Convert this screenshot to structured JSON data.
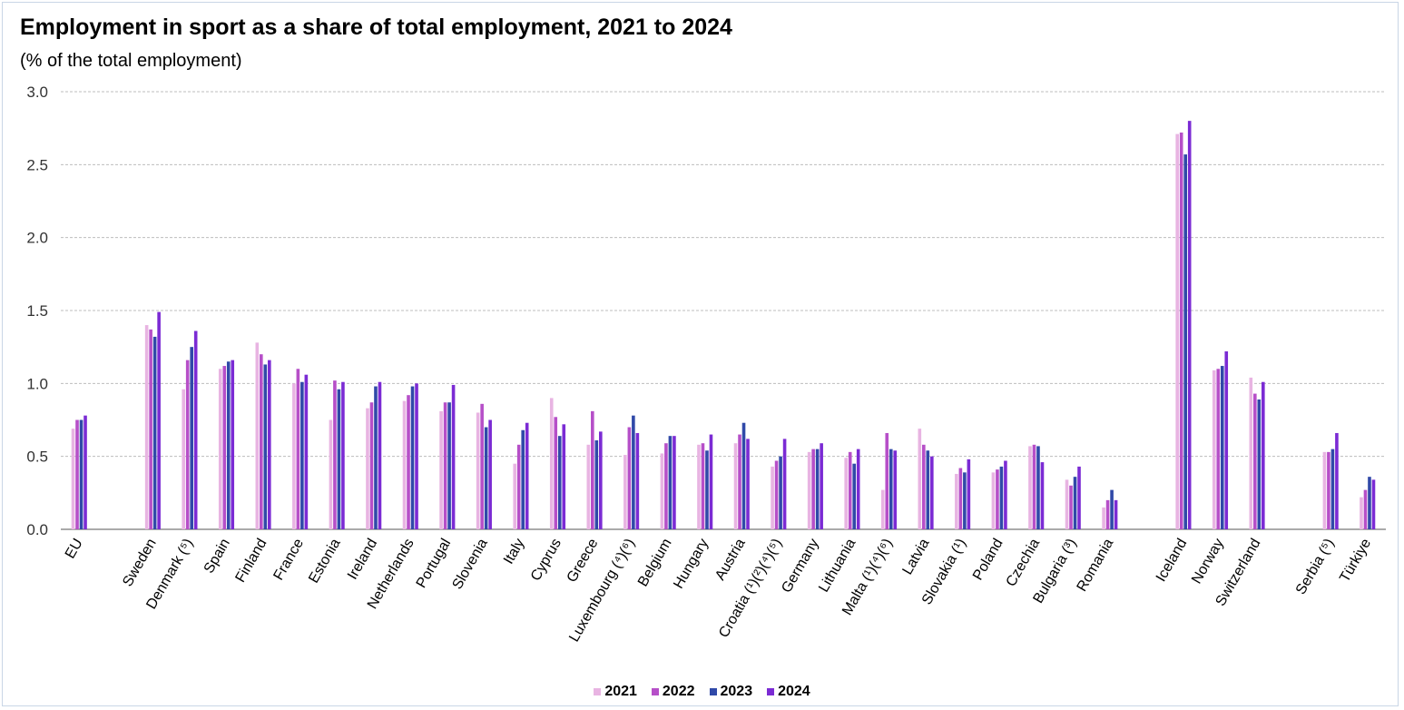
{
  "chart_data": {
    "type": "bar",
    "title": "Employment in sport as a share of total employment, 2021 to 2024",
    "subtitle": "(% of the total employment)",
    "ylim": [
      0,
      3.0
    ],
    "yticks": [
      "0.0",
      "0.5",
      "1.0",
      "1.5",
      "2.0",
      "2.5",
      "3.0"
    ],
    "grid": true,
    "legend_position": "bottom-center",
    "categories": [
      "EU",
      "Sweden",
      "Denmark (⁵)",
      "Spain",
      "Finland",
      "France",
      "Estonia",
      "Ireland",
      "Netherlands",
      "Portugal",
      "Slovenia",
      "Italy",
      "Cyprus",
      "Greece",
      "Luxembourg (⁴)(⁶)",
      "Belgium",
      "Hungary",
      "Austria",
      "Croatia (¹)(²)(⁴)(⁵)",
      "Germany",
      "Lithuania",
      "Malta (¹)(⁴)(⁶)",
      "Latvia",
      "Slovakia (¹)",
      "Poland",
      "Czechia",
      "Bulgaria (³)",
      "Romania",
      "Iceland",
      "Norway",
      "Switzerland",
      "Serbia (⁵)",
      "Türkiye"
    ],
    "groups": [
      1,
      27,
      3,
      2
    ],
    "series": [
      {
        "name": "2021",
        "color": "#e8b4e2",
        "values": [
          0.69,
          1.4,
          0.96,
          1.1,
          1.28,
          1.0,
          0.75,
          0.83,
          0.88,
          0.81,
          0.8,
          0.45,
          0.9,
          0.58,
          0.51,
          0.52,
          0.58,
          0.59,
          0.43,
          0.53,
          0.49,
          0.27,
          0.69,
          0.38,
          0.39,
          0.57,
          0.34,
          0.15,
          2.71,
          1.09,
          1.04,
          0.53,
          0.22
        ]
      },
      {
        "name": "2022",
        "color": "#b64fc8",
        "values": [
          0.75,
          1.37,
          1.16,
          1.12,
          1.2,
          1.1,
          1.02,
          0.87,
          0.92,
          0.87,
          0.86,
          0.58,
          0.77,
          0.81,
          0.7,
          0.59,
          0.59,
          0.65,
          0.47,
          0.55,
          0.53,
          0.66,
          0.58,
          0.42,
          0.41,
          0.58,
          0.3,
          0.2,
          2.72,
          1.1,
          0.93,
          0.53,
          0.27
        ]
      },
      {
        "name": "2023",
        "color": "#3049a8",
        "values": [
          0.75,
          1.32,
          1.25,
          1.15,
          1.13,
          1.01,
          0.96,
          0.98,
          0.98,
          0.87,
          0.7,
          0.68,
          0.64,
          0.61,
          0.78,
          0.64,
          0.54,
          0.73,
          0.5,
          0.55,
          0.45,
          0.55,
          0.54,
          0.39,
          0.43,
          0.57,
          0.36,
          0.27,
          2.57,
          1.12,
          0.89,
          0.55,
          0.36
        ]
      },
      {
        "name": "2024",
        "color": "#7b2bd4",
        "values": [
          0.78,
          1.49,
          1.36,
          1.16,
          1.16,
          1.06,
          1.01,
          1.01,
          1.0,
          0.99,
          0.75,
          0.73,
          0.72,
          0.67,
          0.66,
          0.64,
          0.65,
          0.62,
          0.62,
          0.59,
          0.55,
          0.54,
          0.5,
          0.48,
          0.47,
          0.46,
          0.43,
          0.2,
          2.8,
          1.22,
          1.01,
          0.66,
          0.34
        ]
      }
    ]
  }
}
